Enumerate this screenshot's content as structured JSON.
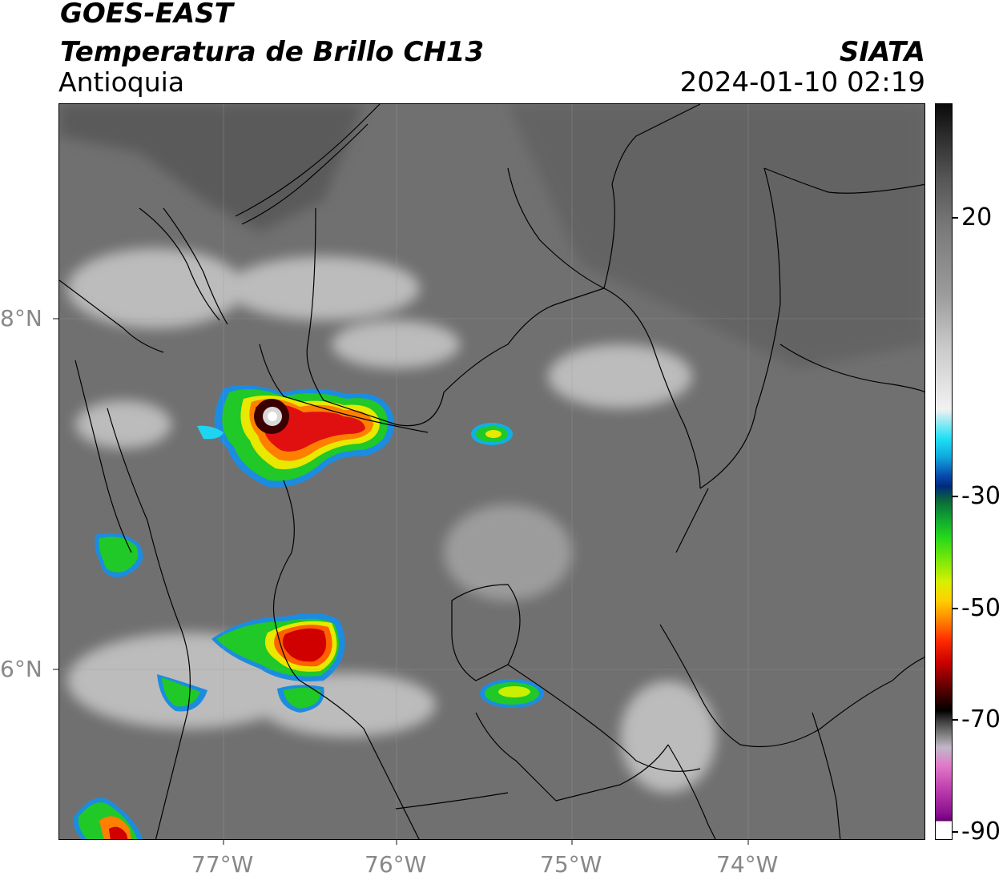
{
  "header": {
    "satellite": "GOES-EAST",
    "product": "Temperatura de Brillo CH13",
    "region": "Antioquia",
    "agency": "SIATA",
    "datetime": "2024-01-10 02:19"
  },
  "map": {
    "x_axis_labels": [
      "77°W",
      "76°W",
      "75°W",
      "74°W"
    ],
    "y_axis_labels": [
      "8°N",
      "6°N"
    ],
    "background_colors": {
      "warm_surface": "#6f6f6f",
      "cloud_light": "#dcdcdc",
      "boundary_line": "#000000"
    }
  },
  "colorbar": {
    "labels": [
      "20",
      "-30",
      "-50",
      "-70",
      "-90"
    ],
    "units": "°C (implied, not printed)"
  }
}
